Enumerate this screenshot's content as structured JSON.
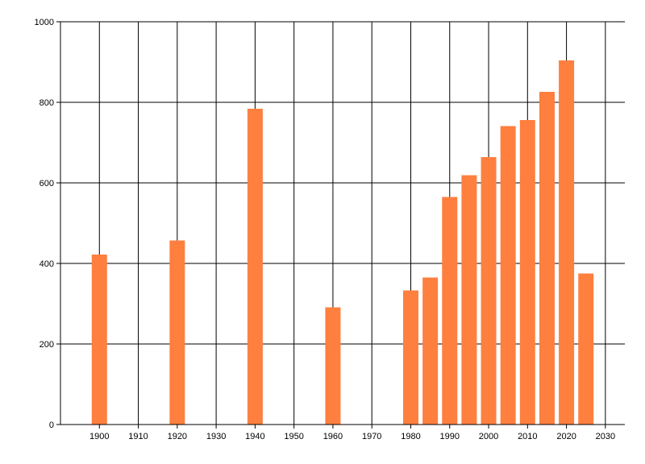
{
  "chart_data": {
    "type": "bar",
    "title": "",
    "xlabel": "",
    "ylabel": "",
    "x": [
      1900,
      1920,
      1940,
      1960,
      1980,
      1985,
      1990,
      1995,
      2000,
      2005,
      2010,
      2015,
      2020,
      2025
    ],
    "values": [
      422,
      457,
      784,
      291,
      333,
      365,
      565,
      619,
      664,
      741,
      756,
      826,
      904,
      375
    ],
    "xlim": [
      1890,
      2035
    ],
    "ylim": [
      0,
      1000
    ],
    "x_ticks": [
      1900,
      1910,
      1920,
      1930,
      1940,
      1950,
      1960,
      1970,
      1980,
      1990,
      2000,
      2010,
      2020,
      2030
    ],
    "y_ticks": [
      0,
      200,
      400,
      600,
      800,
      1000
    ],
    "grid": true,
    "bar_color": "#FF7F3F"
  }
}
